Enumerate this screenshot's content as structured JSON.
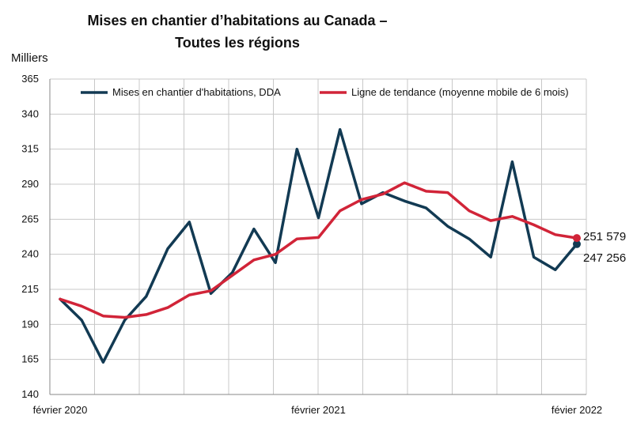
{
  "chart_data": {
    "type": "line",
    "title_line1": "Mises en chantier d’habitations au Canada –",
    "title_line2": "Toutes les régions",
    "ylabel": "Milliers",
    "xlabel": "",
    "ylim": [
      140,
      365
    ],
    "yticks": [
      140,
      165,
      190,
      215,
      240,
      265,
      290,
      315,
      340,
      365
    ],
    "x_ticks": [
      {
        "index": 0,
        "label": "février 2020"
      },
      {
        "index": 12,
        "label": "février 2021"
      },
      {
        "index": 24,
        "label": "févier 2022"
      }
    ],
    "grid": true,
    "legend_position": "top",
    "series": [
      {
        "name": "Mises en chantier d'habitations, DDA",
        "color": "#123a53",
        "values": [
          208,
          193,
          163,
          193,
          210,
          244,
          263,
          212,
          227,
          258,
          234,
          315,
          266,
          329,
          276,
          284,
          278,
          273,
          260,
          251,
          238,
          306,
          238,
          229,
          247.256
        ],
        "end_label": "247 256"
      },
      {
        "name": "Ligne de tendance (moyenne mobile de 6 mois)",
        "color": "#d12438",
        "values": [
          208,
          203,
          196,
          195,
          197,
          202,
          211,
          214,
          225,
          236,
          240,
          251,
          252,
          271,
          279,
          283,
          291,
          285,
          284,
          271,
          264,
          267,
          261,
          254,
          251.579
        ],
        "end_label": "251 579"
      }
    ]
  }
}
